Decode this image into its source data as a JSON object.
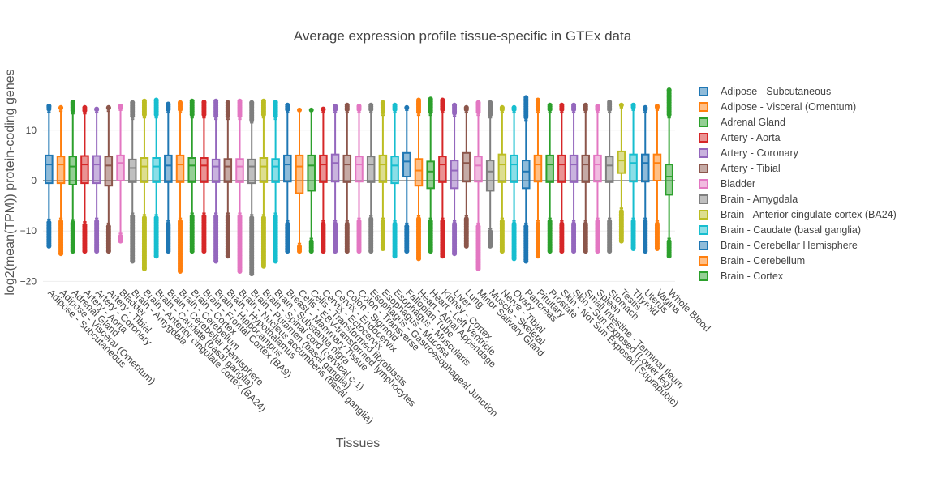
{
  "chart_data": {
    "type": "box",
    "title": "Average expression profile tissue-specific in GTEx data",
    "xlabel": "Tissues",
    "ylabel": "log2(mean(TPM)) protein-coding genes",
    "ylim": [
      -21,
      21
    ],
    "yticks": [
      -20,
      -10,
      0,
      10
    ],
    "legend_position": "right",
    "palette": [
      "#1f77b4",
      "#ff7f0e",
      "#2ca02c",
      "#d62728",
      "#9467bd",
      "#8c564b",
      "#e377c2",
      "#7f7f7f",
      "#bcbd22",
      "#17becf"
    ],
    "categories": [
      "Adipose - Subcutaneous",
      "Adipose - Visceral (Omentum)",
      "Adrenal Gland",
      "Artery - Aorta",
      "Artery - Coronary",
      "Artery - Tibial",
      "Bladder",
      "Brain - Amygdala",
      "Brain - Anterior cingulate cortex (BA24)",
      "Brain - Caudate (basal ganglia)",
      "Brain - Cerebellar Hemisphere",
      "Brain - Cerebellum",
      "Brain - Cortex",
      "Brain - Frontal Cortex (BA9)",
      "Brain - Hippocampus",
      "Brain - Hypothalamus",
      "Brain - Nucleus accumbens (basal ganglia)",
      "Brain - Putamen (basal ganglia)",
      "Brain - Spinal cord (cervical c-1)",
      "Brain - Substantia nigra",
      "Breast - Mammary Tissue",
      "Cells - EBV-transformed lymphocytes",
      "Cells - Transformed fibroblasts",
      "Cervix - Ectocervix",
      "Cervix - Endocervix",
      "Colon - Sigmoid",
      "Colon - Transverse",
      "Esophagus - Gastroesophageal Junction",
      "Esophagus - Mucosa",
      "Esophagus - Muscularis",
      "Fallopian Tube",
      "Heart - Atrial Appendage",
      "Heart - Left Ventricle",
      "Kidney - Cortex",
      "Liver",
      "Lung",
      "Minor Salivary Gland",
      "Muscle - Skeletal",
      "Nerve - Tibial",
      "Ovary",
      "Pancreas",
      "Pituitary",
      "Prostate",
      "Skin - Not Sun Exposed (Suprapubic)",
      "Skin - Sun Exposed (Lower leg)",
      "Small Intestine - Terminal Ileum",
      "Spleen",
      "Stomach",
      "Testis",
      "Thyroid",
      "Uterus",
      "Vagina",
      "Whole Blood"
    ],
    "legend_entries": [
      "Adipose - Subcutaneous",
      "Adipose - Visceral (Omentum)",
      "Adrenal Gland",
      "Artery - Aorta",
      "Artery - Coronary",
      "Artery - Tibial",
      "Bladder",
      "Brain - Amygdala",
      "Brain - Anterior cingulate cortex (BA24)",
      "Brain - Caudate (basal ganglia)",
      "Brain - Cerebellar Hemisphere",
      "Brain - Cerebellum",
      "Brain - Cortex"
    ],
    "boxes": [
      {
        "q1": -0.5,
        "median": 3.2,
        "q3": 5.0,
        "lower_fence": -7.7,
        "upper_fence": 13.6,
        "min": -13,
        "max": 14.8
      },
      {
        "q1": -0.5,
        "median": 3.2,
        "q3": 4.8,
        "lower_fence": -7.5,
        "upper_fence": 13.8,
        "min": -14.5,
        "max": 14.5
      },
      {
        "q1": -0.8,
        "median": 2.8,
        "q3": 4.8,
        "lower_fence": -7.8,
        "upper_fence": 13.3,
        "min": -14,
        "max": 15.6
      },
      {
        "q1": -0.5,
        "median": 3.2,
        "q3": 4.9,
        "lower_fence": -8.2,
        "upper_fence": 13.3,
        "min": -14,
        "max": 14.5
      },
      {
        "q1": -0.5,
        "median": 3.2,
        "q3": 4.9,
        "lower_fence": -7.5,
        "upper_fence": 13.5,
        "min": -14,
        "max": 14.2
      },
      {
        "q1": -1.0,
        "median": 3.0,
        "q3": 4.8,
        "lower_fence": -8.5,
        "upper_fence": 13.8,
        "min": -14,
        "max": 14.5
      },
      {
        "q1": 0.0,
        "median": 3.5,
        "q3": 5.0,
        "lower_fence": -10.5,
        "upper_fence": 14.0,
        "min": -12,
        "max": 14.8
      },
      {
        "q1": -0.3,
        "median": 2.5,
        "q3": 4.2,
        "lower_fence": -6.5,
        "upper_fence": 12.2,
        "min": -16,
        "max": 15.5
      },
      {
        "q1": -0.3,
        "median": 2.8,
        "q3": 4.5,
        "lower_fence": -6.8,
        "upper_fence": 12.5,
        "min": -17.5,
        "max": 15.8
      },
      {
        "q1": -0.3,
        "median": 2.8,
        "q3": 4.5,
        "lower_fence": -6.8,
        "upper_fence": 12.5,
        "min": -15,
        "max": 16
      },
      {
        "q1": -0.3,
        "median": 3.0,
        "q3": 5.0,
        "lower_fence": -8.0,
        "upper_fence": 13.5,
        "min": -14,
        "max": 15.2
      },
      {
        "q1": -0.3,
        "median": 3.2,
        "q3": 5.0,
        "lower_fence": -7.5,
        "upper_fence": 13.5,
        "min": -18,
        "max": 15.5
      },
      {
        "q1": -0.3,
        "median": 3.0,
        "q3": 4.5,
        "lower_fence": -6.5,
        "upper_fence": 12.5,
        "min": -14,
        "max": 15.8
      },
      {
        "q1": -0.3,
        "median": 3.0,
        "q3": 4.5,
        "lower_fence": -6.5,
        "upper_fence": 12.5,
        "min": -14,
        "max": 15.6
      },
      {
        "q1": -0.3,
        "median": 2.8,
        "q3": 4.2,
        "lower_fence": -6.5,
        "upper_fence": 12.2,
        "min": -16,
        "max": 15.8
      },
      {
        "q1": -0.3,
        "median": 2.8,
        "q3": 4.3,
        "lower_fence": -6.5,
        "upper_fence": 12.2,
        "min": -15,
        "max": 15.5
      },
      {
        "q1": -0.3,
        "median": 2.8,
        "q3": 4.3,
        "lower_fence": -6.5,
        "upper_fence": 12.2,
        "min": -18,
        "max": 15.8
      },
      {
        "q1": -0.5,
        "median": 2.8,
        "q3": 4.2,
        "lower_fence": -6.8,
        "upper_fence": 11.5,
        "min": -18.5,
        "max": 15.5
      },
      {
        "q1": -0.3,
        "median": 2.8,
        "q3": 4.5,
        "lower_fence": -6.8,
        "upper_fence": 12.5,
        "min": -17,
        "max": 15.8
      },
      {
        "q1": -0.3,
        "median": 2.8,
        "q3": 4.3,
        "lower_fence": -6.5,
        "upper_fence": 12.2,
        "min": -16,
        "max": 15.6
      },
      {
        "q1": -0.2,
        "median": 3.2,
        "q3": 5.0,
        "lower_fence": -8.0,
        "upper_fence": 13.5,
        "min": -14,
        "max": 15
      },
      {
        "q1": -2.5,
        "median": 2.8,
        "q3": 5.0,
        "lower_fence": -12.5,
        "upper_fence": 14.0,
        "min": -14,
        "max": 14
      },
      {
        "q1": -2.0,
        "median": 3.0,
        "q3": 5.0,
        "lower_fence": -11.5,
        "upper_fence": 14.0,
        "min": -14,
        "max": 14
      },
      {
        "q1": -0.3,
        "median": 3.2,
        "q3": 5.0,
        "lower_fence": -8.0,
        "upper_fence": 13.5,
        "min": -14,
        "max": 14.2
      },
      {
        "q1": -0.2,
        "median": 3.5,
        "q3": 5.2,
        "lower_fence": -8.0,
        "upper_fence": 13.5,
        "min": -14,
        "max": 14.8
      },
      {
        "q1": -0.3,
        "median": 3.2,
        "q3": 5.0,
        "lower_fence": -8.0,
        "upper_fence": 13.5,
        "min": -14,
        "max": 15
      },
      {
        "q1": -0.2,
        "median": 3.2,
        "q3": 4.8,
        "lower_fence": -7.5,
        "upper_fence": 13.5,
        "min": -14,
        "max": 14.8
      },
      {
        "q1": -0.3,
        "median": 3.2,
        "q3": 4.8,
        "lower_fence": -7.0,
        "upper_fence": 13.5,
        "min": -14,
        "max": 15
      },
      {
        "q1": -0.3,
        "median": 3.2,
        "q3": 5.0,
        "lower_fence": -7.5,
        "upper_fence": 13.0,
        "min": -13.5,
        "max": 15.5
      },
      {
        "q1": -0.5,
        "median": 3.0,
        "q3": 4.8,
        "lower_fence": -8.0,
        "upper_fence": 13.5,
        "min": -15,
        "max": 15
      },
      {
        "q1": 0.8,
        "median": 3.8,
        "q3": 5.5,
        "lower_fence": -8.5,
        "upper_fence": 14.0,
        "min": -14,
        "max": 14.5
      },
      {
        "q1": -1.0,
        "median": 2.0,
        "q3": 4.3,
        "lower_fence": -7.0,
        "upper_fence": 13.0,
        "min": -15.5,
        "max": 16
      },
      {
        "q1": -1.5,
        "median": 1.8,
        "q3": 3.8,
        "lower_fence": -7.5,
        "upper_fence": 13.0,
        "min": -14,
        "max": 16.2
      },
      {
        "q1": -0.3,
        "median": 3.2,
        "q3": 4.8,
        "lower_fence": -7.5,
        "upper_fence": 13.5,
        "min": -15,
        "max": 16
      },
      {
        "q1": -1.5,
        "median": 2.0,
        "q3": 4.0,
        "lower_fence": -8.0,
        "upper_fence": 12.8,
        "min": -14.5,
        "max": 15
      },
      {
        "q1": -0.2,
        "median": 3.5,
        "q3": 5.5,
        "lower_fence": -7.0,
        "upper_fence": 13.5,
        "min": -13,
        "max": 14.5
      },
      {
        "q1": -0.2,
        "median": 3.0,
        "q3": 4.8,
        "lower_fence": -8.5,
        "upper_fence": 13.0,
        "min": -17.5,
        "max": 15.5
      },
      {
        "q1": -2.0,
        "median": 1.8,
        "q3": 4.0,
        "lower_fence": -9.5,
        "upper_fence": 12.5,
        "min": -13,
        "max": 15.5
      },
      {
        "q1": -0.3,
        "median": 3.2,
        "q3": 5.2,
        "lower_fence": -7.5,
        "upper_fence": 13.5,
        "min": -14,
        "max": 14.5
      },
      {
        "q1": -0.3,
        "median": 3.2,
        "q3": 5.0,
        "lower_fence": -8.0,
        "upper_fence": 13.5,
        "min": -15.5,
        "max": 14.5
      },
      {
        "q1": -1.5,
        "median": 1.8,
        "q3": 4.0,
        "lower_fence": -8.5,
        "upper_fence": 12.0,
        "min": -16,
        "max": 16.5
      },
      {
        "q1": -0.2,
        "median": 3.2,
        "q3": 5.0,
        "lower_fence": -8.0,
        "upper_fence": 13.5,
        "min": -15,
        "max": 16
      },
      {
        "q1": -0.3,
        "median": 3.2,
        "q3": 5.0,
        "lower_fence": -7.5,
        "upper_fence": 13.5,
        "min": -14,
        "max": 15
      },
      {
        "q1": -0.3,
        "median": 3.2,
        "q3": 5.0,
        "lower_fence": -8.0,
        "upper_fence": 13.5,
        "min": -14,
        "max": 15
      },
      {
        "q1": -0.3,
        "median": 3.2,
        "q3": 5.0,
        "lower_fence": -8.0,
        "upper_fence": 13.5,
        "min": -14,
        "max": 15
      },
      {
        "q1": -0.3,
        "median": 3.2,
        "q3": 5.0,
        "lower_fence": -8.0,
        "upper_fence": 13.5,
        "min": -14,
        "max": 15
      },
      {
        "q1": -0.2,
        "median": 3.2,
        "q3": 5.0,
        "lower_fence": -7.5,
        "upper_fence": 13.5,
        "min": -14,
        "max": 14.8
      },
      {
        "q1": -0.3,
        "median": 3.0,
        "q3": 4.8,
        "lower_fence": -7.5,
        "upper_fence": 13.5,
        "min": -14,
        "max": 15.6
      },
      {
        "q1": 1.5,
        "median": 4.0,
        "q3": 5.8,
        "lower_fence": -5.5,
        "upper_fence": 14.5,
        "min": -12,
        "max": 15
      },
      {
        "q1": -0.2,
        "median": 3.5,
        "q3": 5.2,
        "lower_fence": -7.5,
        "upper_fence": 14.0,
        "min": -13.5,
        "max": 15
      },
      {
        "q1": -0.2,
        "median": 3.5,
        "q3": 5.2,
        "lower_fence": -7.5,
        "upper_fence": 13.5,
        "min": -14,
        "max": 14.5
      },
      {
        "q1": 0.0,
        "median": 3.5,
        "q3": 5.2,
        "lower_fence": -8.0,
        "upper_fence": 14.0,
        "min": -13.5,
        "max": 14.8
      },
      {
        "q1": -2.8,
        "median": 0.8,
        "q3": 3.2,
        "lower_fence": -11.5,
        "upper_fence": 12.5,
        "min": -15,
        "max": 18
      }
    ]
  }
}
